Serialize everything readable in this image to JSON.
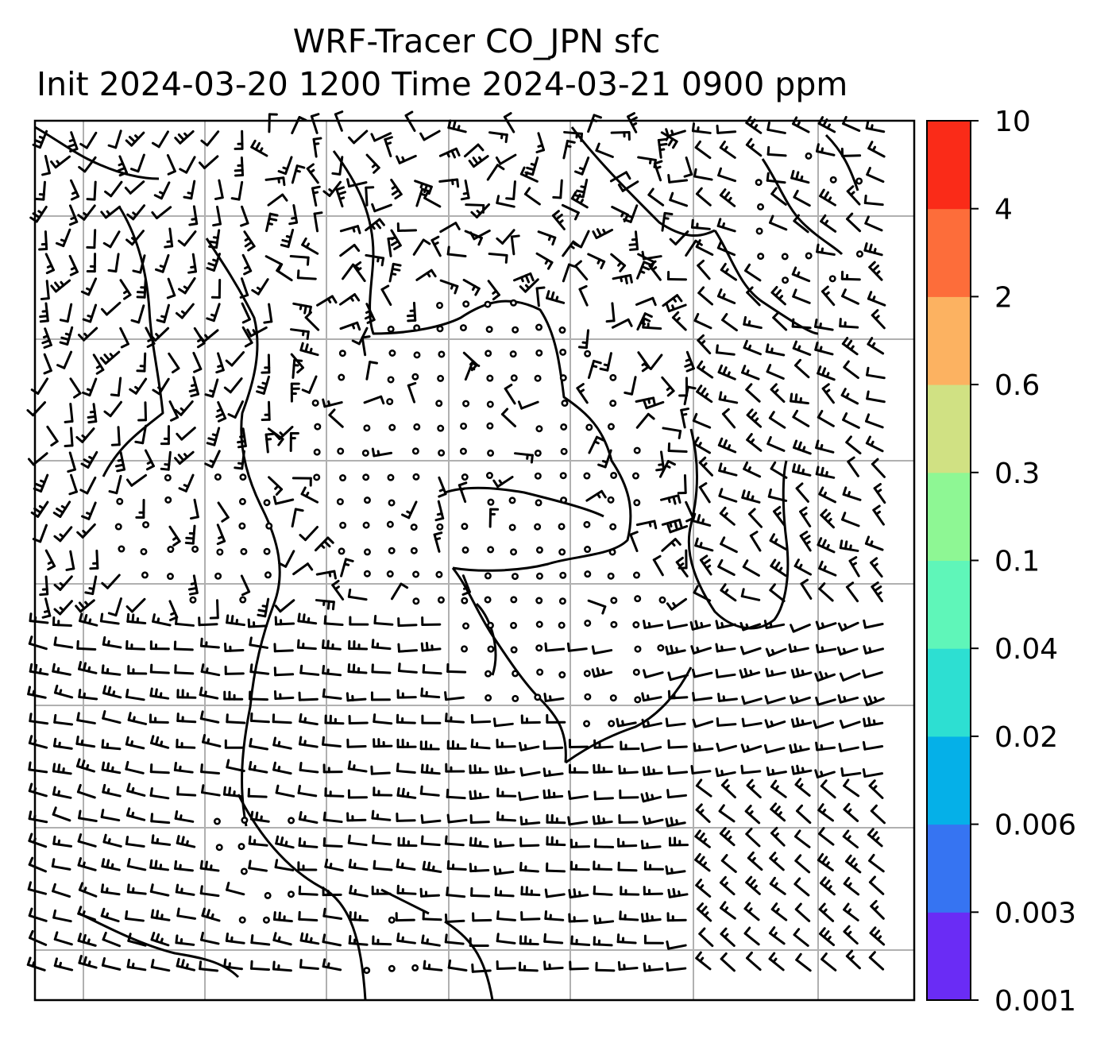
{
  "figure": {
    "title_line1": "WRF-Tracer CO_JPN sfc",
    "title_line2": "Init 2024-03-20 1200 Time 2024-03-21 0900 ppm"
  },
  "map": {
    "type": "wind barbs and tracer concentration map",
    "gridlines": true,
    "coastlines": true,
    "tracer_field_visible": false
  },
  "colorbar": {
    "levels": [
      "0.001",
      "0.003",
      "0.006",
      "0.02",
      "0.04",
      "0.1",
      "0.3",
      "0.6",
      "2",
      "4",
      "10"
    ],
    "colors": [
      "#6a2cf5",
      "#3674f2",
      "#05b0e8",
      "#2ddfd2",
      "#5ff6b9",
      "#8ef794",
      "#d0e183",
      "#fcb261",
      "#fd6d3a",
      "#fa2b18"
    ]
  }
}
